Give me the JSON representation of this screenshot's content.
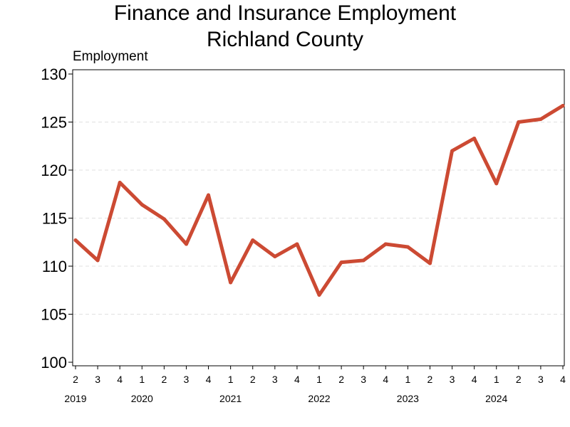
{
  "chart_data": {
    "type": "line",
    "title": "Finance and Insurance Employment",
    "subtitle": "Richland County",
    "ylabel": "Employment",
    "xlabel": "",
    "ylim": [
      100,
      130
    ],
    "yticks": [
      100,
      105,
      110,
      115,
      120,
      125,
      130
    ],
    "grid": "horizontal dashed",
    "line_color": "#cc4a33",
    "categories": [
      "2",
      "3",
      "4",
      "1",
      "2",
      "3",
      "4",
      "1",
      "2",
      "3",
      "4",
      "1",
      "2",
      "3",
      "4",
      "1",
      "2",
      "3",
      "4",
      "1",
      "2",
      "3",
      "4"
    ],
    "years": [
      {
        "label": "2019",
        "index": 0
      },
      {
        "label": "2020",
        "index": 3
      },
      {
        "label": "2021",
        "index": 7
      },
      {
        "label": "2022",
        "index": 11
      },
      {
        "label": "2023",
        "index": 15
      },
      {
        "label": "2024",
        "index": 19
      }
    ],
    "series": [
      {
        "values": [
          112.7,
          110.6,
          118.7,
          116.4,
          114.9,
          112.3,
          117.4,
          108.3,
          112.7,
          111.0,
          112.3,
          107.0,
          110.4,
          110.6,
          112.3,
          112.0,
          110.3,
          122.0,
          123.3,
          118.6,
          125.0,
          125.3,
          126.7
        ]
      }
    ]
  }
}
